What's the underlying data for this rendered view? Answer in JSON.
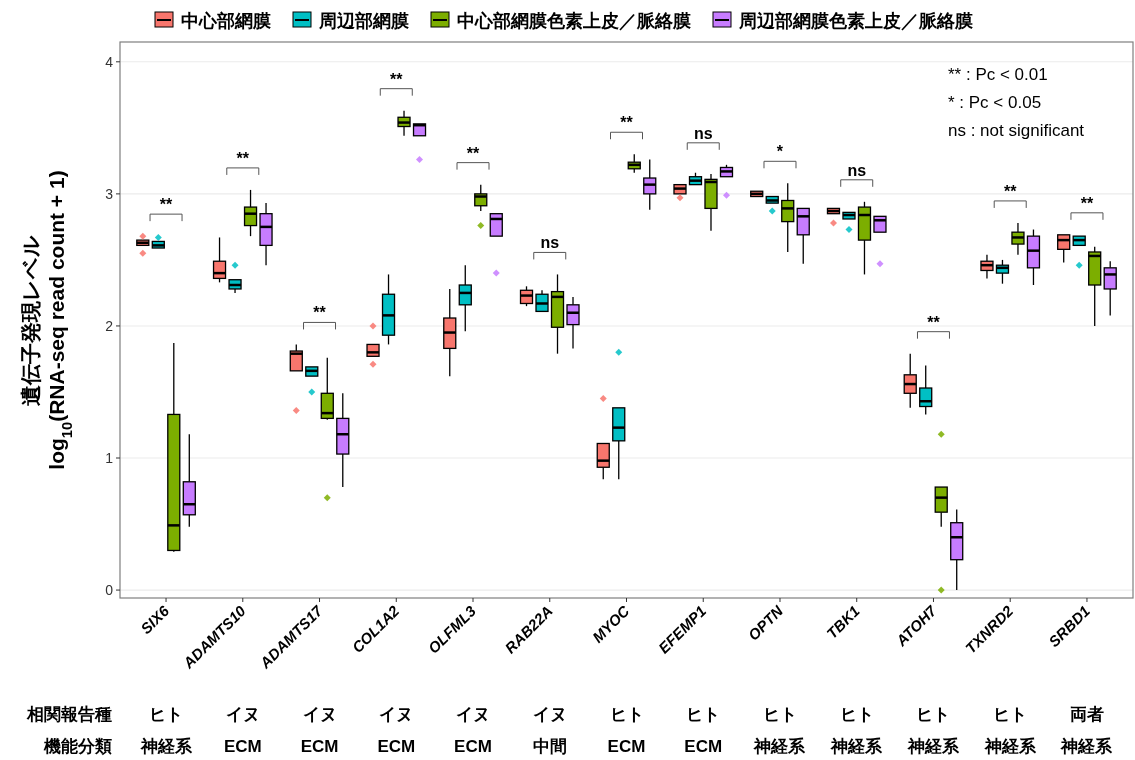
{
  "chart_data": {
    "type": "box",
    "ylabel": "遺伝子発現レベル\nlog$_{10}$(RNA-seq read count + 1)",
    "categories": [
      "SIX6",
      "ADAMTS10",
      "ADAMTS17",
      "COL1A2",
      "OLFML3",
      "RAB22A",
      "MYOC",
      "EFEMP1",
      "OPTN",
      "TBK1",
      "ATOH7",
      "TXNRD2",
      "SRBD1"
    ],
    "ylim": [
      -0.06,
      4.15
    ],
    "yticks": [
      0,
      1,
      2,
      3,
      4
    ],
    "grid": "y",
    "legend": "top",
    "series": [
      {
        "name": "中心部網膜",
        "color": "#f8766d",
        "boxes": [
          {
            "low": 2.61,
            "q1": 2.61,
            "median": 2.63,
            "q3": 2.65,
            "high": 2.65,
            "outliers": [
              2.55,
              2.68
            ]
          },
          {
            "low": 2.33,
            "q1": 2.36,
            "median": 2.4,
            "q3": 2.49,
            "high": 2.67
          },
          {
            "low": 1.66,
            "q1": 1.66,
            "median": 1.79,
            "q3": 1.81,
            "high": 1.86,
            "outliers": [
              1.36
            ]
          },
          {
            "low": 1.77,
            "q1": 1.77,
            "median": 1.8,
            "q3": 1.86,
            "high": 1.86,
            "outliers": [
              2.0,
              1.71
            ]
          },
          {
            "low": 1.62,
            "q1": 1.83,
            "median": 1.95,
            "q3": 2.06,
            "high": 2.28
          },
          {
            "low": 2.15,
            "q1": 2.17,
            "median": 2.23,
            "q3": 2.27,
            "high": 2.3
          },
          {
            "low": 0.84,
            "q1": 0.93,
            "median": 0.98,
            "q3": 1.11,
            "high": 1.11,
            "outliers": [
              1.45
            ]
          },
          {
            "low": 3.0,
            "q1": 3.0,
            "median": 3.04,
            "q3": 3.07,
            "high": 3.07,
            "outliers": [
              2.97
            ]
          },
          {
            "low": 2.98,
            "q1": 2.98,
            "median": 3.0,
            "q3": 3.02,
            "high": 3.02
          },
          {
            "low": 2.85,
            "q1": 2.85,
            "median": 2.87,
            "q3": 2.89,
            "high": 2.89,
            "outliers": [
              2.78
            ]
          },
          {
            "low": 1.38,
            "q1": 1.49,
            "median": 1.56,
            "q3": 1.63,
            "high": 1.79
          },
          {
            "low": 2.36,
            "q1": 2.42,
            "median": 2.46,
            "q3": 2.49,
            "high": 2.54
          },
          {
            "low": 2.48,
            "q1": 2.58,
            "median": 2.65,
            "q3": 2.69,
            "high": 2.69
          }
        ]
      },
      {
        "name": "周辺部網膜",
        "color": "#00bfc4",
        "boxes": [
          {
            "low": 2.59,
            "q1": 2.59,
            "median": 2.61,
            "q3": 2.64,
            "high": 2.64,
            "outliers": [
              2.67
            ]
          },
          {
            "low": 2.25,
            "q1": 2.28,
            "median": 2.31,
            "q3": 2.35,
            "high": 2.35,
            "outliers": [
              2.46
            ]
          },
          {
            "low": 1.62,
            "q1": 1.62,
            "median": 1.66,
            "q3": 1.69,
            "high": 1.69,
            "outliers": [
              1.5
            ]
          },
          {
            "low": 1.86,
            "q1": 1.93,
            "median": 2.08,
            "q3": 2.24,
            "high": 2.39
          },
          {
            "low": 1.96,
            "q1": 2.16,
            "median": 2.25,
            "q3": 2.31,
            "high": 2.46
          },
          {
            "low": 2.11,
            "q1": 2.11,
            "median": 2.17,
            "q3": 2.24,
            "high": 2.27
          },
          {
            "low": 0.84,
            "q1": 1.13,
            "median": 1.23,
            "q3": 1.38,
            "high": 1.38,
            "outliers": [
              1.8
            ]
          },
          {
            "low": 3.07,
            "q1": 3.07,
            "median": 3.1,
            "q3": 3.13,
            "high": 3.16
          },
          {
            "low": 2.93,
            "q1": 2.93,
            "median": 2.95,
            "q3": 2.98,
            "high": 2.98,
            "outliers": [
              2.87
            ]
          },
          {
            "low": 2.81,
            "q1": 2.81,
            "median": 2.84,
            "q3": 2.86,
            "high": 2.86,
            "outliers": [
              2.73
            ]
          },
          {
            "low": 1.33,
            "q1": 1.39,
            "median": 1.43,
            "q3": 1.53,
            "high": 1.7
          },
          {
            "low": 2.32,
            "q1": 2.4,
            "median": 2.44,
            "q3": 2.46,
            "high": 2.5
          },
          {
            "low": 2.61,
            "q1": 2.61,
            "median": 2.65,
            "q3": 2.68,
            "high": 2.68,
            "outliers": [
              2.46
            ]
          }
        ]
      },
      {
        "name": "中心部網膜色素上皮／脈絡膜",
        "color": "#7cae00",
        "boxes": [
          {
            "low": 0.29,
            "q1": 0.3,
            "median": 0.49,
            "q3": 1.33,
            "high": 1.87
          },
          {
            "low": 2.68,
            "q1": 2.76,
            "median": 2.85,
            "q3": 2.9,
            "high": 3.03
          },
          {
            "low": 1.29,
            "q1": 1.3,
            "median": 1.34,
            "q3": 1.49,
            "high": 1.76,
            "outliers": [
              0.7
            ]
          },
          {
            "low": 3.44,
            "q1": 3.51,
            "median": 3.54,
            "q3": 3.58,
            "high": 3.63
          },
          {
            "low": 2.87,
            "q1": 2.91,
            "median": 2.98,
            "q3": 3.0,
            "high": 3.07,
            "outliers": [
              2.76
            ]
          },
          {
            "low": 1.79,
            "q1": 1.99,
            "median": 2.22,
            "q3": 2.26,
            "high": 2.39
          },
          {
            "low": 3.16,
            "q1": 3.19,
            "median": 3.22,
            "q3": 3.24,
            "high": 3.3
          },
          {
            "low": 2.72,
            "q1": 2.89,
            "median": 3.09,
            "q3": 3.11,
            "high": 3.15
          },
          {
            "low": 2.56,
            "q1": 2.79,
            "median": 2.89,
            "q3": 2.95,
            "high": 3.08
          },
          {
            "low": 2.39,
            "q1": 2.65,
            "median": 2.84,
            "q3": 2.9,
            "high": 2.94
          },
          {
            "low": 0.48,
            "q1": 0.59,
            "median": 0.7,
            "q3": 0.78,
            "high": 0.78,
            "outliers": [
              1.18,
              0.0
            ]
          },
          {
            "low": 2.54,
            "q1": 2.62,
            "median": 2.67,
            "q3": 2.71,
            "high": 2.78
          },
          {
            "low": 2.0,
            "q1": 2.31,
            "median": 2.53,
            "q3": 2.56,
            "high": 2.6
          }
        ]
      },
      {
        "name": "周辺部網膜色素上皮／脈絡膜",
        "color": "#c77cff",
        "boxes": [
          {
            "low": 0.48,
            "q1": 0.57,
            "median": 0.65,
            "q3": 0.82,
            "high": 1.18
          },
          {
            "low": 2.46,
            "q1": 2.61,
            "median": 2.75,
            "q3": 2.85,
            "high": 2.93
          },
          {
            "low": 0.78,
            "q1": 1.03,
            "median": 1.18,
            "q3": 1.3,
            "high": 1.49
          },
          {
            "low": 3.44,
            "q1": 3.44,
            "median": 3.52,
            "q3": 3.53,
            "high": 3.53,
            "outliers": [
              3.26
            ]
          },
          {
            "low": 2.68,
            "q1": 2.68,
            "median": 2.81,
            "q3": 2.85,
            "high": 2.85,
            "outliers": [
              2.4
            ]
          },
          {
            "low": 1.83,
            "q1": 2.01,
            "median": 2.1,
            "q3": 2.16,
            "high": 2.22
          },
          {
            "low": 2.88,
            "q1": 3.0,
            "median": 3.07,
            "q3": 3.12,
            "high": 3.26
          },
          {
            "low": 3.13,
            "q1": 3.13,
            "median": 3.17,
            "q3": 3.2,
            "high": 3.22,
            "outliers": [
              2.99
            ]
          },
          {
            "low": 2.47,
            "q1": 2.69,
            "median": 2.83,
            "q3": 2.89,
            "high": 2.89
          },
          {
            "low": 2.71,
            "q1": 2.71,
            "median": 2.8,
            "q3": 2.83,
            "high": 2.83,
            "outliers": [
              2.47
            ]
          },
          {
            "low": 0.0,
            "q1": 0.23,
            "median": 0.4,
            "q3": 0.51,
            "high": 0.61
          },
          {
            "low": 2.31,
            "q1": 2.44,
            "median": 2.57,
            "q3": 2.68,
            "high": 2.73
          },
          {
            "low": 2.08,
            "q1": 2.28,
            "median": 2.39,
            "q3": 2.44,
            "high": 2.49
          }
        ]
      }
    ],
    "annotations": [
      "**",
      "**",
      "**",
      "**",
      "**",
      "ns",
      "**",
      "ns",
      "*",
      "ns",
      "**",
      "**",
      "**",
      "** : Pc < 0.01",
      "* : Pc < 0.05",
      "ns : not significant",
      "相関報告種",
      "機能分類",
      "ヒト",
      "イヌ",
      "イヌ",
      "イヌ",
      "イヌ",
      "イヌ",
      "ヒト",
      "ヒト",
      "ヒト",
      "ヒト",
      "ヒト",
      "ヒト",
      "両者",
      "神経系",
      "ECM",
      "ECM",
      "ECM",
      "ECM",
      "中間",
      "ECM",
      "ECM",
      "神経系",
      "神経系",
      "神経系",
      "神経系",
      "神経系"
    ]
  }
}
